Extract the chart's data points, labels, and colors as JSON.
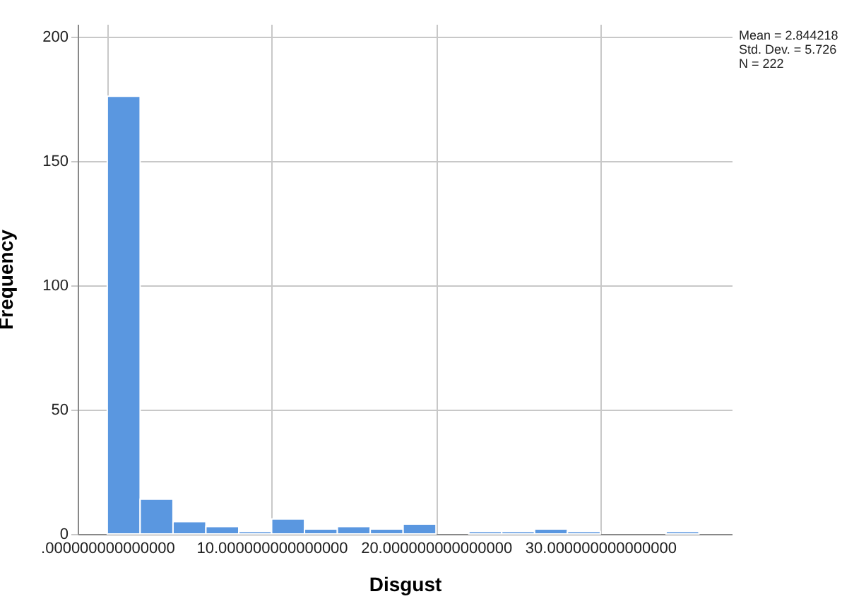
{
  "chart_data": {
    "type": "histogram",
    "xlabel": "Disgust",
    "ylabel": "Frequency",
    "bins": [
      0,
      2,
      4,
      6,
      8,
      10,
      12,
      14,
      16,
      18,
      20,
      22,
      24,
      26,
      28,
      30,
      32,
      34,
      36
    ],
    "values": [
      176,
      14,
      5,
      3,
      1,
      6,
      2,
      3,
      2,
      4,
      0,
      1,
      1,
      2,
      1,
      0,
      0,
      1
    ],
    "color": "#5a97e0",
    "xlim": [
      -1.8,
      38
    ],
    "xticks": [
      {
        "value": 0,
        "label": ".000000000000000"
      },
      {
        "value": 10,
        "label": "10.000000000000000"
      },
      {
        "value": 20,
        "label": "20.000000000000000"
      },
      {
        "value": 30,
        "label": "30.000000000000000"
      }
    ],
    "ylim": [
      0,
      205
    ],
    "yticks": [
      0,
      50,
      100,
      150,
      200
    ],
    "grid": true,
    "annotations": [
      "Mean = 2.844218",
      "Std. Dev. = 5.726",
      "N = 222"
    ]
  }
}
